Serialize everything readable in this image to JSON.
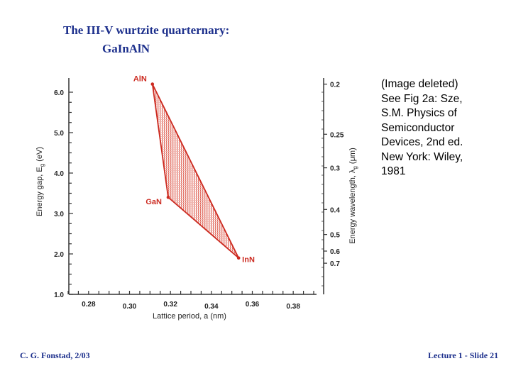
{
  "slide": {
    "title_line1": "The III-V wurtzite quarternary:",
    "title_line2": "GaInAlN",
    "note_lines": [
      "(Image deleted)",
      "See Fig 2a: Sze,",
      "S.M. Physics of",
      "Semiconductor",
      "Devices, 2nd ed.",
      "New York: Wiley,",
      "1981"
    ],
    "footer_left": "C. G. Fonstad, 2/03",
    "footer_right": "Lecture 1 - Slide 21"
  },
  "chart_data": {
    "type": "scatter",
    "title": "",
    "xlabel": "Lattice period, a (nm)",
    "ylabel": "Energy gap, E",
    "ylabel_sub": "g",
    "ylabel_unit": " (eV)",
    "y2label": "Energy wavelength, λ",
    "y2label_sub": "g",
    "y2label_unit": " (μm)",
    "xlim": [
      0.27,
      0.39
    ],
    "ylim": [
      1.0,
      6.3
    ],
    "x_ticks": [
      "0.28",
      "0.30",
      "0.32",
      "0.34",
      "0.36",
      "0.38"
    ],
    "y_ticks": [
      "1.0",
      "2.0",
      "3.0",
      "4.0",
      "5.0",
      "6.0"
    ],
    "y2_ticks": [
      {
        "label": "0.2",
        "energy": 6.2
      },
      {
        "label": "0.25",
        "energy": 4.96
      },
      {
        "label": "0.3",
        "energy": 4.13
      },
      {
        "label": "0.4",
        "energy": 3.1
      },
      {
        "label": "0.5",
        "energy": 2.48
      },
      {
        "label": "0.6",
        "energy": 2.07
      },
      {
        "label": "0.7",
        "energy": 1.77
      }
    ],
    "points": [
      {
        "name": "AlN",
        "x": 0.3112,
        "y": 6.2
      },
      {
        "name": "GaN",
        "x": 0.3189,
        "y": 3.4
      },
      {
        "name": "InN",
        "x": 0.3533,
        "y": 1.9
      }
    ],
    "colors": {
      "region": "#cc2a20",
      "axes": "#333333"
    }
  }
}
